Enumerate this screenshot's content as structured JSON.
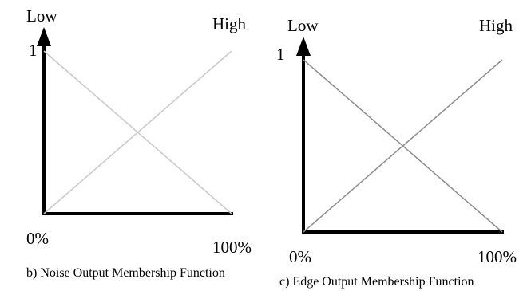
{
  "chart_data": [
    {
      "type": "line",
      "caption": "b)  Noise Output Membership Function",
      "x_ticks": [
        "0%",
        "100%"
      ],
      "y_tick": "1",
      "xlim": [
        0,
        100
      ],
      "ylim": [
        0,
        1
      ],
      "series": [
        {
          "name": "Low",
          "x": [
            0,
            100
          ],
          "y": [
            1,
            0
          ]
        },
        {
          "name": "High",
          "x": [
            0,
            100
          ],
          "y": [
            0,
            1
          ]
        }
      ],
      "line_color": "#c8c8c8"
    },
    {
      "type": "line",
      "caption": "c)  Edge Output Membership Function",
      "x_ticks": [
        "0%",
        "100%"
      ],
      "y_tick": "1",
      "xlim": [
        0,
        100
      ],
      "ylim": [
        0,
        1
      ],
      "series": [
        {
          "name": "Low",
          "x": [
            0,
            100
          ],
          "y": [
            1,
            0
          ]
        },
        {
          "name": "High",
          "x": [
            0,
            100
          ],
          "y": [
            0,
            1
          ]
        }
      ],
      "line_color": "#8c8c8c"
    }
  ]
}
